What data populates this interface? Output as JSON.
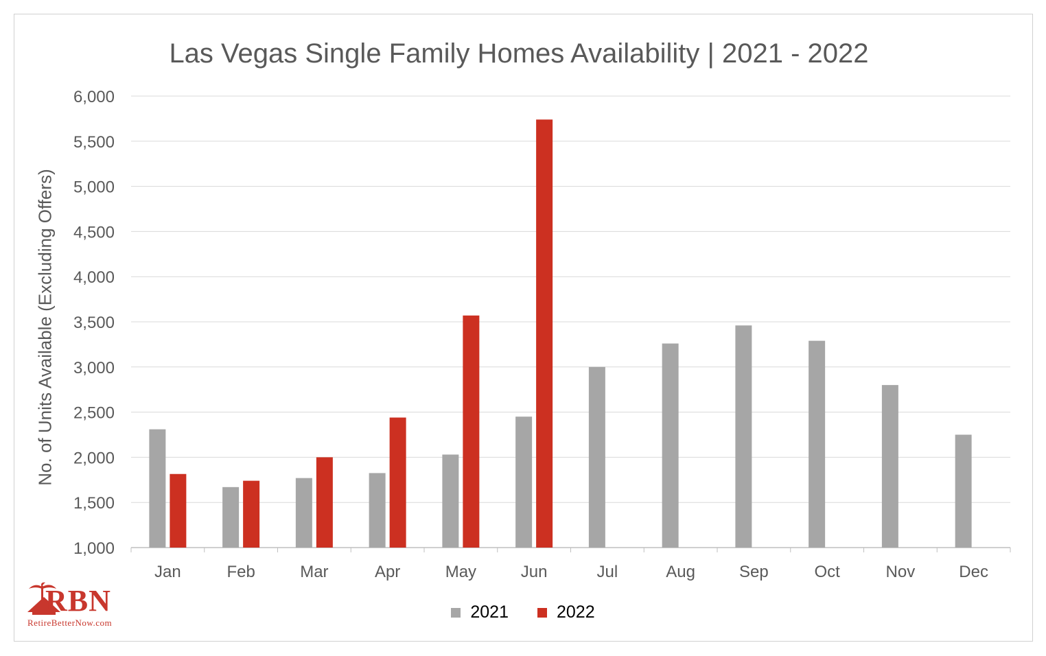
{
  "chart_data": {
    "type": "bar",
    "title": "Las Vegas Single Family Homes Availability | 2021 - 2022",
    "xlabel": "",
    "ylabel": "No. of Units Available (Excluding Offers)",
    "ylim": [
      1000,
      6000
    ],
    "yticks": [
      1000,
      1500,
      2000,
      2500,
      3000,
      3500,
      4000,
      4500,
      5000,
      5500,
      6000
    ],
    "ytick_labels": [
      "1,000",
      "1,500",
      "2,000",
      "2,500",
      "3,000",
      "3,500",
      "4,000",
      "4,500",
      "5,000",
      "5,500",
      "6,000"
    ],
    "grid": true,
    "legend_position": "bottom",
    "categories": [
      "Jan",
      "Feb",
      "Mar",
      "Apr",
      "May",
      "Jun",
      "Jul",
      "Aug",
      "Sep",
      "Oct",
      "Nov",
      "Dec"
    ],
    "series": [
      {
        "name": "2021",
        "color": "#a6a6a6",
        "values": [
          2310,
          1670,
          1770,
          1825,
          2030,
          2450,
          3000,
          3260,
          3460,
          3290,
          2800,
          2250
        ]
      },
      {
        "name": "2022",
        "color": "#cc3021",
        "values": [
          1815,
          1740,
          2000,
          2440,
          3570,
          5740,
          null,
          null,
          null,
          null,
          null,
          null
        ]
      }
    ]
  },
  "logo": {
    "mark": "RBN",
    "tagline": "RetireBetterNow.com",
    "icon": "palm-house-icon",
    "color": "#c8372d"
  }
}
